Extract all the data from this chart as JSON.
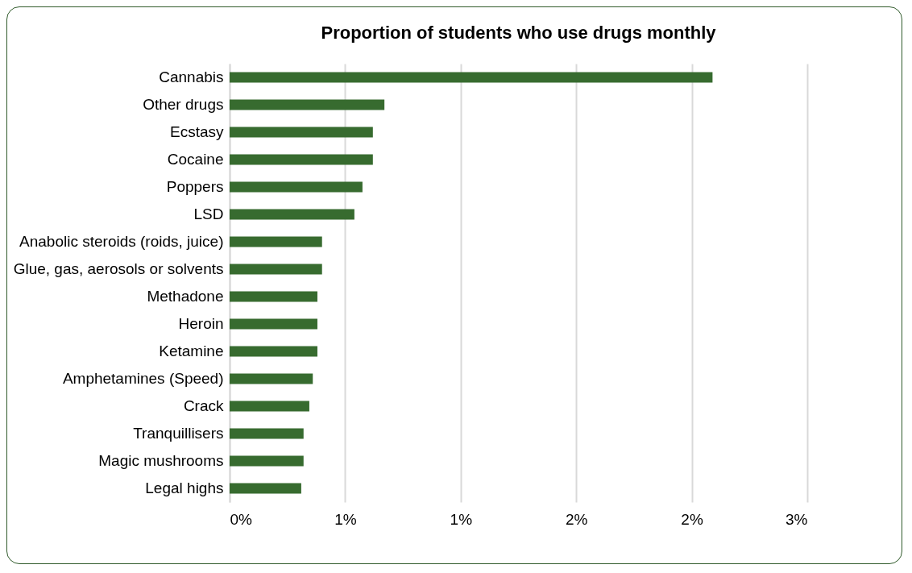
{
  "chart_data": {
    "type": "bar",
    "orientation": "horizontal",
    "title": "Proportion of students who use drugs monthly",
    "categories": [
      "Cannabis",
      "Other drugs",
      "Ecstasy",
      "Cocaine",
      "Poppers",
      "LSD",
      "Anabolic steroids (roids, juice)",
      "Glue, gas, aerosols or solvents",
      "Methadone",
      "Heroin",
      "Ketamine",
      "Amphetamines (Speed)",
      "Crack",
      "Tranquillisers",
      "Magic mushrooms",
      "Legal highs"
    ],
    "values": [
      2.09,
      0.67,
      0.62,
      0.62,
      0.575,
      0.54,
      0.4,
      0.4,
      0.38,
      0.38,
      0.38,
      0.36,
      0.345,
      0.32,
      0.32,
      0.31
    ],
    "color": "#376b2f",
    "xlim": [
      0,
      2.5
    ],
    "xticks": [
      {
        "value": 0,
        "label": "0%"
      },
      {
        "value": 0.5,
        "label": "1%"
      },
      {
        "value": 1,
        "label": "1%"
      },
      {
        "value": 1.5,
        "label": "2%"
      },
      {
        "value": 2,
        "label": "2%"
      },
      {
        "value": 2.5,
        "label": "3%"
      }
    ],
    "grid": "x"
  }
}
